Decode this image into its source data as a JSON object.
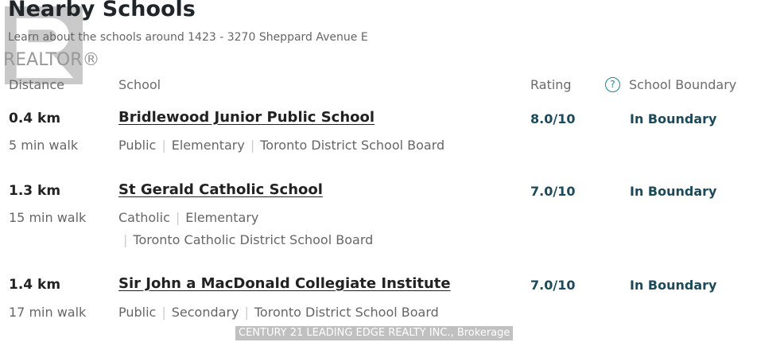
{
  "header": {
    "title": "Nearby Schools",
    "subtitle": "Learn about the schools around 1423 - 3270 Sheppard Avenue E"
  },
  "columns": {
    "distance": "Distance",
    "school": "School",
    "rating": "Rating",
    "boundary": "School Boundary"
  },
  "help_icon": "question-circle-icon",
  "schools": [
    {
      "distance": "0.4 km",
      "walk": "5 min walk",
      "name": "Bridlewood Junior Public School",
      "type": "Public",
      "level": "Elementary",
      "board": "Toronto District School Board",
      "rating": "8.0/10",
      "boundary": "In Boundary"
    },
    {
      "distance": "1.3 km",
      "walk": "15 min walk",
      "name": "St Gerald Catholic School",
      "type": "Catholic",
      "level": "Elementary",
      "board": "Toronto Catholic District School Board",
      "rating": "7.0/10",
      "boundary": "In Boundary"
    },
    {
      "distance": "1.4 km",
      "walk": "17 min walk",
      "name": "Sir John a MacDonald Collegiate Institute",
      "type": "Public",
      "level": "Secondary",
      "board": "Toronto District School Board",
      "rating": "7.0/10",
      "boundary": "In Boundary"
    }
  ],
  "watermark": {
    "logo": "REALTOR®",
    "brokerage": "CENTURY 21 LEADING EDGE REALTY INC., Brokerage"
  },
  "colors": {
    "accent": "#1c4a5a",
    "help": "#1a8a8a"
  }
}
